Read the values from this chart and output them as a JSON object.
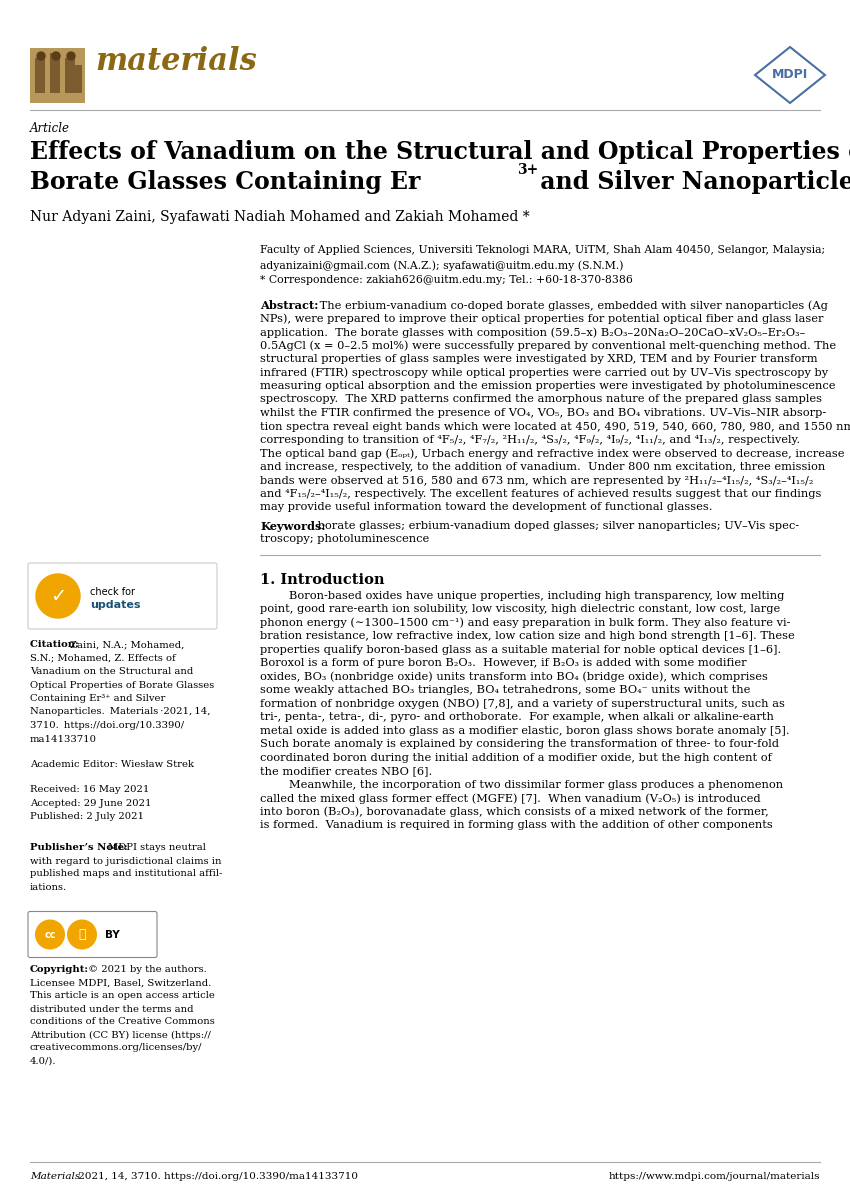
{
  "bg_color": "#ffffff",
  "page_width": 8.5,
  "page_height": 12.02,
  "journal_color": "#8B6914",
  "mdpi_color": "#4a6fa5",
  "title_line1": "Effects of Vanadium on the Structural and Optical Properties of",
  "title_line2": "Borate Glasses Containing Er",
  "title_sup": "3+",
  "title_line2c": " and Silver Nanoparticles",
  "authors": "Nur Adyani Zaini, Syafawati Nadiah Mohamed and Zakiah Mohamed *",
  "affil1": "Faculty of Applied Sciences, Universiti Teknologi MARA, UiTM, Shah Alam 40450, Selangor, Malaysia;",
  "affil2": "adyanizaini@gmail.com (N.A.Z.); syafawati@uitm.edu.my (S.N.M.)",
  "affil3": "* Correspondence: zakiah626@uitm.edu.my; Tel.: +60-18-370-8386",
  "academic_editor": "Academic Editor: Wiesław Strek",
  "received": "Received: 16 May 2021",
  "accepted": "Accepted: 29 June 2021",
  "published": "Published: 2 July 2021",
  "footer_left": "Materials 2021, 14, 3710. https://doi.org/10.3390/ma14133710",
  "footer_right": "https://www.mdpi.com/journal/materials"
}
